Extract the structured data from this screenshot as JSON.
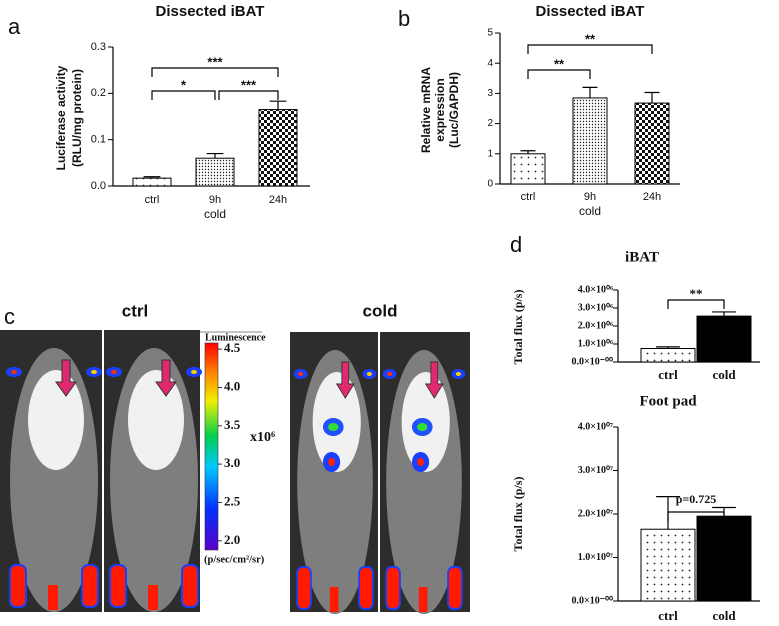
{
  "chart_data": [
    {
      "type": "bar",
      "panel": "a",
      "title": "Dissected iBAT",
      "ylabel": [
        "Luciferase activity",
        "(RLU/mg protein)"
      ],
      "xlabel": "cold",
      "categories": [
        "ctrl",
        "9h",
        "24h"
      ],
      "values": [
        0.017,
        0.06,
        0.165
      ],
      "errors": [
        0.003,
        0.01,
        0.018
      ],
      "patterns": [
        "sparse-dots",
        "dense-dots",
        "checker"
      ],
      "color": "#000000",
      "ylim": [
        0,
        0.3
      ],
      "yticks": [
        {
          "value": 0,
          "label": "0.0"
        },
        0.1,
        0.2,
        0.3
      ],
      "significance": [
        {
          "from": 0,
          "to": 1,
          "label": "*"
        },
        {
          "from": 1,
          "to": 2,
          "label": "***"
        },
        {
          "from": 0,
          "to": 2,
          "label": "***"
        }
      ]
    },
    {
      "type": "bar",
      "panel": "b",
      "title": "Dissected iBAT",
      "ylabel": [
        "Relative mRNA",
        "expression",
        "(Luc/GAPDH)"
      ],
      "xlabel": "cold",
      "categories": [
        "ctrl",
        "9h",
        "24h"
      ],
      "values": [
        1.0,
        2.85,
        2.68
      ],
      "errors": [
        0.1,
        0.35,
        0.35
      ],
      "patterns": [
        "sparse-dots",
        "dense-dots",
        "checker"
      ],
      "color": "#000000",
      "ylim": [
        0,
        5
      ],
      "yticks": [
        0,
        1,
        2,
        3,
        4,
        5
      ],
      "significance": [
        {
          "from": 0,
          "to": 2,
          "label": "**"
        },
        {
          "from": 0,
          "to": 1,
          "label": "**"
        }
      ]
    },
    {
      "type": "colorbar",
      "panel": "c",
      "labels": [
        "ctrl",
        "cold"
      ],
      "title": "Luminescence",
      "multiplier": "x10⁶",
      "unit": "(p/sec/cm²/sr)",
      "ylim": [
        1.88,
        4.58
      ],
      "yticks": [
        {
          "value": 2,
          "label": "2.0"
        },
        2.5,
        {
          "value": 3,
          "label": "3.0"
        },
        3.5,
        {
          "value": 4,
          "label": "4.0"
        },
        4.5
      ]
    },
    {
      "type": "bar",
      "panel": "d",
      "title": "iBAT",
      "ylabel": [
        "Total flux (p/s)"
      ],
      "categories": [
        "ctrl",
        "cold"
      ],
      "values": [
        750000,
        2550000
      ],
      "errors": [
        90000,
        230000
      ],
      "patterns": [
        "sparse-dots",
        "solid"
      ],
      "color": "#000000",
      "ylim": [
        0,
        4000000
      ],
      "yticks": [
        {
          "value": 0,
          "label": "0.0×10⁻⁰⁰"
        },
        {
          "value": 1000000,
          "label": "1.0×10⁰⁶"
        },
        {
          "value": 2000000,
          "label": "2.0×10⁰⁶"
        },
        {
          "value": 3000000,
          "label": "3.0×10⁰⁶"
        },
        {
          "value": 4000000,
          "label": "4.0×10⁰⁶"
        }
      ],
      "significance": [
        {
          "from": 0,
          "to": 1,
          "label": "**"
        }
      ]
    },
    {
      "type": "bar",
      "title": "Foot pad",
      "ylabel": [
        "Total flux (p/s)"
      ],
      "categories": [
        "ctrl",
        "cold"
      ],
      "values": [
        16500000,
        19500000
      ],
      "errors": [
        7500000,
        2000000
      ],
      "patterns": [
        "sparse-dots",
        "solid"
      ],
      "color": "#000000",
      "ylim": [
        0,
        40000000
      ],
      "yticks": [
        {
          "value": 0,
          "label": "0.0×10⁻⁰⁰"
        },
        {
          "value": 10000000,
          "label": "1.0×10⁰⁷"
        },
        {
          "value": 20000000,
          "label": "2.0×10⁰⁷"
        },
        {
          "value": 30000000,
          "label": "3.0×10⁰⁷"
        },
        {
          "value": 40000000,
          "label": "4.0×10⁰⁷"
        }
      ],
      "significance": [
        {
          "from": 0,
          "to": 1,
          "label": "p=0.725"
        }
      ]
    }
  ]
}
